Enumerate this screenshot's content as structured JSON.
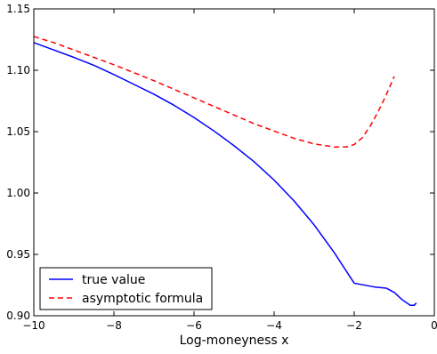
{
  "chart_data": {
    "type": "line",
    "title": "",
    "xlabel": "Log-moneyness x",
    "ylabel": "",
    "xlim": [
      -10,
      0
    ],
    "ylim": [
      0.9,
      1.15
    ],
    "x_ticks": [
      -10,
      -8,
      -6,
      -4,
      -2,
      0
    ],
    "x_tick_labels": [
      "−10",
      "−8",
      "−6",
      "−4",
      "−2",
      "0"
    ],
    "y_ticks": [
      0.9,
      0.95,
      1.0,
      1.05,
      1.1,
      1.15
    ],
    "y_tick_labels": [
      "0.90",
      "0.95",
      "1.00",
      "1.05",
      "1.10",
      "1.15"
    ],
    "grid": false,
    "legend_position": "lower-left",
    "series": [
      {
        "name": "true value",
        "color": "#0000ff",
        "style": "solid",
        "x": [
          -10,
          -9.5,
          -9,
          -8.5,
          -8,
          -7.5,
          -7,
          -6.5,
          -6,
          -5.5,
          -5,
          -4.5,
          -4,
          -3.5,
          -3,
          -2.5,
          -2,
          -1.5,
          -1.2,
          -1,
          -0.8,
          -0.6,
          -0.5,
          -0.45
        ],
        "y": [
          1.1225,
          1.1165,
          1.1105,
          1.104,
          1.0965,
          1.0885,
          1.0805,
          1.0715,
          1.0615,
          1.0505,
          1.0385,
          1.0255,
          1.0105,
          0.9935,
          0.974,
          0.9515,
          0.9265,
          0.9235,
          0.9225,
          0.919,
          0.913,
          0.9085,
          0.9085,
          0.9105
        ]
      },
      {
        "name": "asymptotic formula",
        "color": "#ff0000",
        "style": "dashed",
        "x": [
          -10,
          -9.5,
          -9,
          -8.5,
          -8,
          -7.5,
          -7,
          -6.5,
          -6,
          -5.5,
          -5,
          -4.5,
          -4,
          -3.5,
          -3,
          -2.5,
          -2.2,
          -2,
          -1.8,
          -1.6,
          -1.4,
          -1.2,
          -1
        ],
        "y": [
          1.1275,
          1.1225,
          1.1165,
          1.1105,
          1.1045,
          1.098,
          1.0915,
          1.0845,
          1.0775,
          1.0705,
          1.0635,
          1.0565,
          1.0505,
          1.0445,
          1.04,
          1.0375,
          1.0375,
          1.0395,
          1.045,
          1.0545,
          1.0665,
          1.08,
          1.095
        ]
      }
    ]
  }
}
